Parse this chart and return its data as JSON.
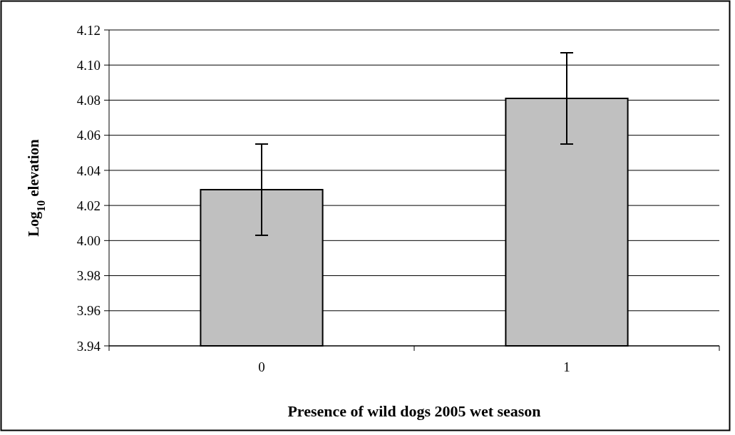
{
  "chart_data": {
    "type": "bar",
    "xlabel": "Presence of wild dogs 2005 wet season",
    "ylabel": "Log$_{10}$ elevation",
    "categories": [
      "0",
      "1"
    ],
    "values": [
      4.029,
      4.081
    ],
    "errors": [
      0.026,
      0.026
    ],
    "color": "#c0c0c0",
    "ylim": [
      3.94,
      4.12
    ],
    "yticks": [
      {
        "value": 3.94,
        "label": "3.94"
      },
      {
        "value": 3.96,
        "label": "3.96"
      },
      {
        "value": 3.98,
        "label": "3.98"
      },
      {
        "value": 4.0,
        "label": "4.00"
      },
      {
        "value": 4.02,
        "label": "4.02"
      },
      {
        "value": 4.04,
        "label": "4.04"
      },
      {
        "value": 4.06,
        "label": "4.06"
      },
      {
        "value": 4.08,
        "label": "4.08"
      },
      {
        "value": 4.1,
        "label": "4.10"
      },
      {
        "value": 4.12,
        "label": "4.12"
      }
    ],
    "grid": "y"
  }
}
